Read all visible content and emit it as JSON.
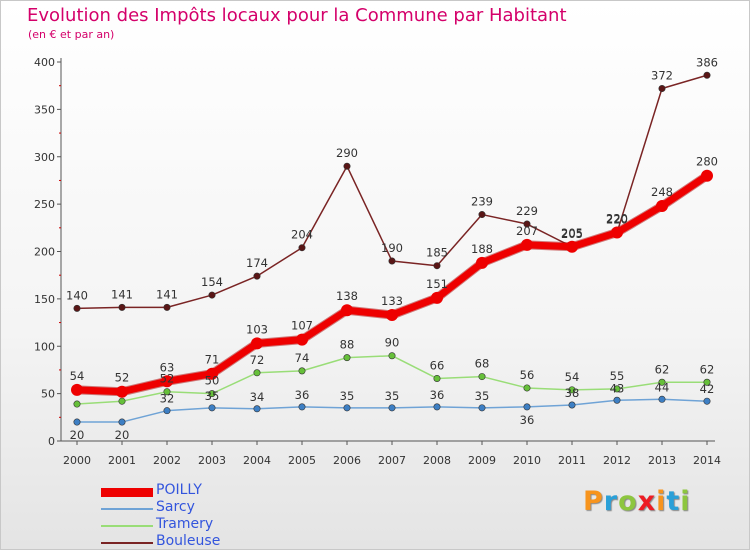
{
  "header": {
    "title": "Evolution des Impôts locaux pour la Commune par Habitant",
    "subtitle": "(en € et par an)"
  },
  "logo": {
    "text": "Proxiti",
    "colors": [
      "#f7941d",
      "#2aa0d8",
      "#8dc63f",
      "#ed1c24",
      "#f7941d",
      "#2aa0d8",
      "#8dc63f"
    ]
  },
  "chart_data": {
    "type": "line",
    "title": "Evolution des Impôts locaux pour la Commune par Habitant",
    "subtitle": "(en € et par an)",
    "x": [
      "2000",
      "2001",
      "2002",
      "2003",
      "2004",
      "2005",
      "2006",
      "2007",
      "2008",
      "2009",
      "2010",
      "2011",
      "2012",
      "2013",
      "2014"
    ],
    "ylim": [
      0,
      400
    ],
    "yticks": [
      0,
      50,
      100,
      150,
      200,
      250,
      300,
      350,
      400
    ],
    "grid": false,
    "legend_position": "bottom-left",
    "series": [
      {
        "name": "POILLY",
        "color": "#ee0000",
        "point_color": "#ee0000",
        "width": 7,
        "values": [
          54,
          52,
          63,
          71,
          103,
          107,
          138,
          133,
          151,
          188,
          207,
          205,
          220,
          248,
          280
        ],
        "labels": true
      },
      {
        "name": "Sarcy",
        "color": "#6fa3d6",
        "point_color": "#3d7fc4",
        "width": 1.5,
        "values": [
          20,
          20,
          32,
          35,
          34,
          36,
          35,
          35,
          36,
          35,
          36,
          38,
          43,
          44,
          42
        ],
        "labels": true
      },
      {
        "name": "Tramery",
        "color": "#99dd77",
        "point_color": "#66c03a",
        "width": 1.5,
        "values": [
          39,
          42,
          52,
          50,
          72,
          74,
          88,
          90,
          66,
          68,
          56,
          54,
          55,
          62,
          62
        ],
        "labels": true
      },
      {
        "name": "Bouleuse",
        "color": "#7a2424",
        "point_color": "#5a1616",
        "width": 1.5,
        "values": [
          140,
          141,
          141,
          154,
          174,
          204,
          290,
          190,
          185,
          239,
          229,
          205,
          220,
          372,
          386
        ],
        "labels": true
      }
    ],
    "value_labels": [
      {
        "series": "POILLY",
        "values": [
          "54",
          "52",
          "63",
          "71",
          "103",
          "107",
          "138",
          "133",
          "151",
          "188",
          "207",
          "205",
          "220",
          "248",
          "280"
        ]
      },
      {
        "series": "Sarcy",
        "values": [
          "20",
          "20",
          "32",
          "35",
          "34",
          "36",
          "35",
          "35",
          "36",
          "35",
          "36",
          "38",
          "43",
          "44",
          "42"
        ]
      },
      {
        "series": "Tramery",
        "values": [
          "",
          "",
          "52",
          "50",
          "72",
          "74",
          "88",
          "90",
          "66",
          "68",
          "56",
          "54",
          "55",
          "62",
          "62"
        ]
      },
      {
        "series": "Bouleuse",
        "values": [
          "140",
          "141",
          "141",
          "154",
          "174",
          "204",
          "290",
          "190",
          "185",
          "239",
          "229",
          "205",
          "220",
          "372",
          "386"
        ]
      }
    ]
  }
}
